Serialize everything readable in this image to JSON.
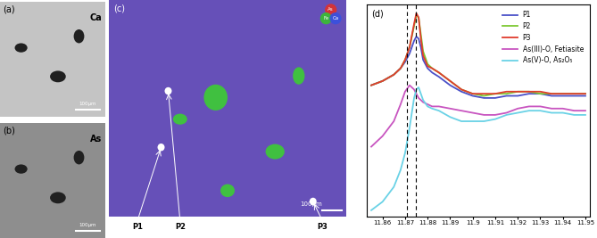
{
  "chart_data": {
    "type": "line",
    "label": "(d)",
    "x": [
      11.855,
      11.86,
      11.865,
      11.868,
      11.87,
      11.872,
      11.874,
      11.875,
      11.876,
      11.877,
      11.878,
      11.88,
      11.882,
      11.885,
      11.89,
      11.895,
      11.9,
      11.905,
      11.91,
      11.915,
      11.92,
      11.925,
      11.93,
      11.935,
      11.94,
      11.945,
      11.95
    ],
    "series": [
      {
        "name": "P1",
        "color": "#4a50c8",
        "values": [
          0.62,
          0.64,
          0.67,
          0.7,
          0.73,
          0.77,
          0.83,
          0.85,
          0.84,
          0.8,
          0.74,
          0.7,
          0.68,
          0.66,
          0.62,
          0.59,
          0.57,
          0.56,
          0.56,
          0.57,
          0.57,
          0.58,
          0.58,
          0.57,
          0.57,
          0.57,
          0.57
        ]
      },
      {
        "name": "P2",
        "color": "#7dc832",
        "values": [
          0.62,
          0.64,
          0.67,
          0.7,
          0.74,
          0.8,
          0.9,
          0.95,
          0.94,
          0.86,
          0.78,
          0.72,
          0.7,
          0.68,
          0.64,
          0.6,
          0.58,
          0.57,
          0.58,
          0.58,
          0.59,
          0.59,
          0.58,
          0.58,
          0.58,
          0.58,
          0.58
        ]
      },
      {
        "name": "P3",
        "color": "#e03c2d",
        "values": [
          0.62,
          0.64,
          0.67,
          0.7,
          0.74,
          0.8,
          0.91,
          0.96,
          0.94,
          0.84,
          0.76,
          0.71,
          0.7,
          0.68,
          0.64,
          0.6,
          0.58,
          0.58,
          0.58,
          0.59,
          0.59,
          0.59,
          0.59,
          0.58,
          0.58,
          0.58,
          0.58
        ]
      },
      {
        "name": "As(III)-O, Fetiasite",
        "color": "#c855c0",
        "values": [
          0.33,
          0.38,
          0.45,
          0.53,
          0.59,
          0.62,
          0.6,
          0.58,
          0.56,
          0.55,
          0.54,
          0.53,
          0.52,
          0.52,
          0.51,
          0.5,
          0.49,
          0.48,
          0.48,
          0.49,
          0.51,
          0.52,
          0.52,
          0.51,
          0.51,
          0.5,
          0.5
        ]
      },
      {
        "name": "As(V)-O, As₂O₅",
        "color": "#6ad2e6",
        "values": [
          0.03,
          0.07,
          0.14,
          0.22,
          0.3,
          0.42,
          0.56,
          0.6,
          0.61,
          0.58,
          0.55,
          0.52,
          0.51,
          0.5,
          0.47,
          0.45,
          0.45,
          0.45,
          0.46,
          0.48,
          0.49,
          0.5,
          0.5,
          0.49,
          0.49,
          0.48,
          0.48
        ]
      }
    ],
    "dashed_lines_x": [
      11.8708,
      11.8748
    ],
    "xlim": [
      11.853,
      11.952
    ],
    "xticks": [
      {
        "value": 11.86,
        "label": "11.86"
      },
      {
        "value": 11.87,
        "label": "11.87"
      },
      {
        "value": 11.88,
        "label": "11.88"
      },
      {
        "value": 11.89,
        "label": "11.89"
      },
      {
        "value": 11.9,
        "label": "11.9"
      },
      {
        "value": 11.91,
        "label": "11.91"
      },
      {
        "value": 11.92,
        "label": "11.92"
      },
      {
        "value": 11.93,
        "label": "11.93"
      },
      {
        "value": 11.94,
        "label": "11.94"
      },
      {
        "value": 11.95,
        "label": "11.95"
      }
    ],
    "ylim": [
      0,
      1
    ],
    "tick_labels": "x",
    "legend": "upper right"
  },
  "image_panels": [
    {
      "label": "(a)",
      "element": "Ca",
      "scale_bar": "100μm"
    },
    {
      "label": "(b)",
      "element": "As",
      "scale_bar": "100μm"
    },
    {
      "label": "(c)",
      "channels": [
        {
          "name": "As",
          "color": "#e0302a"
        },
        {
          "name": "Fe",
          "color": "#38c030"
        },
        {
          "name": "Ca",
          "color": "#3850e0"
        }
      ],
      "points": [
        "P1",
        "P2",
        "P3"
      ],
      "scale_bar": "100μm"
    }
  ]
}
